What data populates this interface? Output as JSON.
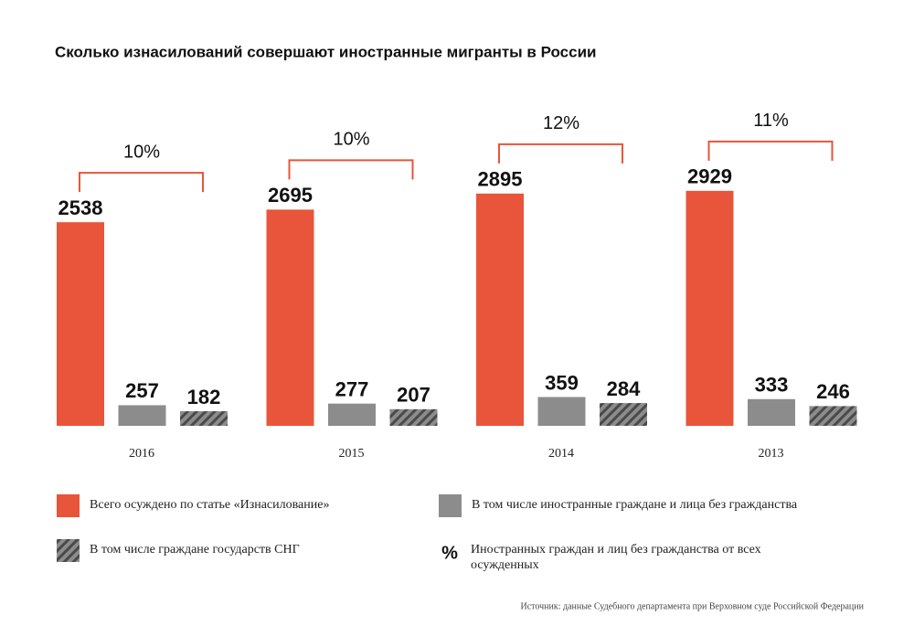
{
  "chart_data": {
    "type": "bar",
    "title": "Сколько изнасилований совершают иностранные мигранты в России",
    "categories": [
      "2016",
      "2015",
      "2014",
      "2013"
    ],
    "series": [
      {
        "name": "Всего осуждено по статье «Изнасилование»",
        "color": "#e8553a",
        "values": [
          2538,
          2695,
          2895,
          2929
        ]
      },
      {
        "name": "В том числе иностранные граждане и лица без гражданства",
        "color": "#8c8c8c",
        "values": [
          257,
          277,
          359,
          333
        ]
      },
      {
        "name": "В том числе граждане государств СНГ",
        "color": "#8c8c8c",
        "pattern": "hatch",
        "values": [
          182,
          207,
          284,
          246
        ]
      }
    ],
    "share": {
      "symbol": "%",
      "name": "Иностранных граждан и лиц без гражданства от всех осужденных",
      "color": "#e8553a",
      "values": [
        10,
        10,
        12,
        11
      ],
      "value_labels": [
        "10%",
        "10%",
        "12%",
        "11%"
      ]
    },
    "source": "Источник: данные Судебного департамента при Верховном суде Российской Федерации"
  }
}
